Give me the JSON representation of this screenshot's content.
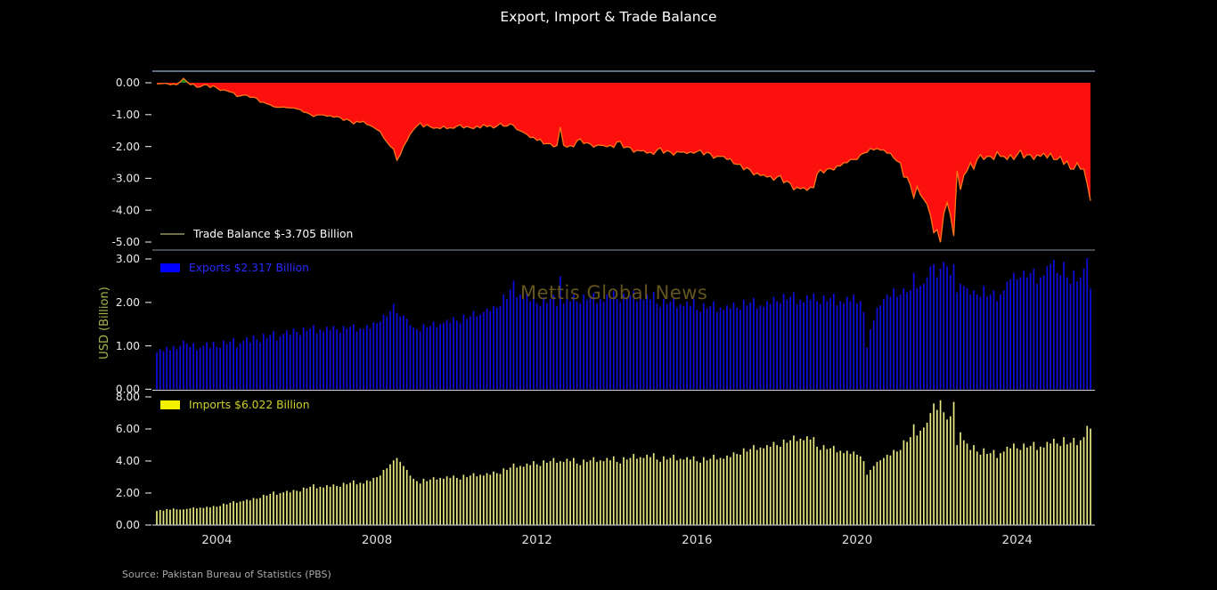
{
  "title": "Export, Import & Trade Balance",
  "y_axis_label": "USD (Billion)",
  "watermark": "Mettis Global News",
  "source": "Source: Pakistan Bureau of Statistics (PBS)",
  "colors": {
    "background": "#000000",
    "title_text": "#ffffff",
    "axis_tick_text": "#ededed",
    "tick_mark": "#cfcfcf",
    "x_label_text": "#dedede",
    "ylabel_text": "#a9b44d",
    "spine_top": "#96b3d9",
    "spine_mid1": "#8d96a5",
    "spine_mid2": "#cfcfcf",
    "spine_bottom": "#b6bcc6",
    "trade_fill_negative": "#fb100d",
    "trade_fill_positive": "#1f8b1f",
    "trade_line": "#ff7518",
    "trade_legend_swatch": "#6e6e4b",
    "trade_legend_text": "#ffffff",
    "exports_bar": "#0d0de0",
    "exports_legend_swatch": "#0000ff",
    "exports_legend_text": "#2a2aff",
    "imports_bar": "#e9e882",
    "imports_legend_swatch": "#f2f200",
    "imports_legend_text": "#cfcf2e",
    "watermark_text": "#6a591f",
    "source_text": "#a9a9a9"
  },
  "x_axis": {
    "frequency": "monthly",
    "start": "2002-07",
    "end": "2025-11",
    "tick_labels": [
      "2004",
      "2008",
      "2012",
      "2016",
      "2020",
      "2024"
    ],
    "tick_month_index": [
      18,
      66,
      114,
      162,
      210,
      258
    ]
  },
  "chart_data": [
    {
      "type": "area",
      "name": "Trade Balance",
      "legend": "Trade Balance $-3.705 Billion",
      "latest_value_billion_usd": -3.705,
      "ylim": [
        -5.25,
        0.36
      ],
      "ytick_values": [
        0,
        -1,
        -2,
        -3,
        -4,
        -5
      ],
      "ytick_labels": [
        "0.00",
        "-1.00",
        "-2.00",
        "-3.00",
        "-4.00",
        "-5.00"
      ],
      "values_derived": "exports_minus_imports"
    },
    {
      "type": "bar",
      "name": "Exports",
      "legend": "Exports $2.317 Billion",
      "latest_value_billion_usd": 2.317,
      "ylim": [
        0,
        3.2
      ],
      "ytick_values": [
        3,
        2,
        1,
        0
      ],
      "ytick_labels": [
        "3.00",
        "2.00",
        "1.00",
        "0.00"
      ],
      "values_by_year": {
        "2002": [
          0.85,
          0.92,
          0.88,
          0.98,
          0.9,
          1.0
        ],
        "2003": [
          0.92,
          1.0,
          1.12,
          1.05,
          0.98,
          1.06,
          0.9,
          0.96,
          1.0,
          1.08,
          0.95,
          1.1
        ],
        "2004": [
          0.98,
          0.95,
          1.12,
          1.04,
          1.1,
          1.18,
          0.96,
          1.06,
          1.12,
          1.2,
          1.08,
          1.24
        ],
        "2005": [
          1.15,
          1.08,
          1.28,
          1.18,
          1.25,
          1.34,
          1.12,
          1.22,
          1.28,
          1.36,
          1.25,
          1.4
        ],
        "2006": [
          1.32,
          1.25,
          1.42,
          1.35,
          1.4,
          1.48,
          1.28,
          1.38,
          1.33,
          1.44,
          1.36,
          1.46
        ],
        "2007": [
          1.38,
          1.3,
          1.46,
          1.4,
          1.44,
          1.5,
          1.33,
          1.4,
          1.38,
          1.48,
          1.4,
          1.54
        ],
        "2008": [
          1.52,
          1.56,
          1.72,
          1.68,
          1.8,
          1.96,
          1.76,
          1.68,
          1.7,
          1.62,
          1.48,
          1.42
        ],
        "2009": [
          1.38,
          1.33,
          1.5,
          1.43,
          1.46,
          1.56,
          1.43,
          1.5,
          1.53,
          1.6,
          1.53,
          1.66
        ],
        "2010": [
          1.58,
          1.52,
          1.72,
          1.62,
          1.68,
          1.8,
          1.68,
          1.72,
          1.78,
          1.86,
          1.8,
          1.92
        ],
        "2011": [
          1.88,
          1.92,
          2.18,
          2.08,
          2.3,
          2.5,
          2.12,
          2.18,
          2.08,
          2.22,
          2.02,
          2.28
        ],
        "2012": [
          1.98,
          1.92,
          2.12,
          1.98,
          2.08,
          2.18,
          1.92,
          2.6,
          1.98,
          2.12,
          2.02,
          2.18
        ],
        "2013": [
          2.02,
          1.98,
          2.18,
          2.06,
          2.12,
          2.22,
          1.98,
          2.08,
          2.02,
          2.18,
          2.08,
          2.26
        ],
        "2014": [
          2.08,
          2.0,
          2.2,
          2.08,
          2.16,
          2.26,
          2.02,
          2.1,
          2.06,
          2.18,
          2.06,
          2.24
        ],
        "2015": [
          1.98,
          1.9,
          2.08,
          1.96,
          2.02,
          2.12,
          1.88,
          1.96,
          1.92,
          2.02,
          1.92,
          2.08
        ],
        "2016": [
          1.83,
          1.78,
          1.98,
          1.86,
          1.92,
          2.02,
          1.78,
          1.88,
          1.83,
          1.93,
          1.86,
          2.0
        ],
        "2017": [
          1.88,
          1.83,
          2.06,
          1.93,
          2.0,
          2.1,
          1.86,
          1.93,
          1.9,
          2.03,
          1.96,
          2.13
        ],
        "2018": [
          2.03,
          1.98,
          2.2,
          2.06,
          2.13,
          2.23,
          1.96,
          2.06,
          2.0,
          2.16,
          2.06,
          2.2
        ],
        "2019": [
          2.03,
          1.96,
          2.16,
          2.03,
          2.1,
          2.2,
          1.93,
          2.03,
          1.98,
          2.13,
          2.03,
          2.18
        ],
        "2020": [
          1.98,
          2.03,
          1.78,
          0.96,
          1.38,
          1.58,
          1.88,
          1.93,
          2.08,
          2.18,
          2.13,
          2.33
        ],
        "2021": [
          2.13,
          2.18,
          2.33,
          2.23,
          2.28,
          2.68,
          2.33,
          2.38,
          2.43,
          2.58,
          2.83,
          2.88
        ],
        "2022": [
          2.58,
          2.78,
          2.93,
          2.83,
          2.63,
          2.88,
          2.23,
          2.43,
          2.38,
          2.33,
          2.18,
          2.28
        ],
        "2023": [
          2.18,
          2.13,
          2.38,
          2.13,
          2.18,
          2.28,
          2.03,
          2.18,
          2.28,
          2.48,
          2.53,
          2.68
        ],
        "2024": [
          2.53,
          2.58,
          2.73,
          2.58,
          2.68,
          2.78,
          2.43,
          2.58,
          2.63,
          2.83,
          2.88,
          2.98
        ],
        "2025": [
          2.68,
          2.63,
          2.93,
          2.58,
          2.43,
          2.73,
          2.48,
          2.58,
          2.78,
          3.02,
          2.317
        ]
      }
    },
    {
      "type": "bar",
      "name": "Imports",
      "legend": "Imports $6.022 Billion",
      "latest_value_billion_usd": 6.022,
      "ylim": [
        0,
        8.4
      ],
      "ytick_values": [
        8,
        6,
        4,
        2,
        0
      ],
      "ytick_labels": [
        "8.00",
        "6.00",
        "4.00",
        "2.00",
        "0.00"
      ],
      "values_by_year": {
        "2002": [
          0.88,
          0.95,
          0.9,
          1.0,
          0.96,
          1.04
        ],
        "2003": [
          0.98,
          0.97,
          0.98,
          1.01,
          1.04,
          1.1,
          1.04,
          1.09,
          1.07,
          1.14,
          1.1,
          1.19
        ],
        "2004": [
          1.14,
          1.19,
          1.34,
          1.29,
          1.39,
          1.49,
          1.39,
          1.47,
          1.51,
          1.59,
          1.54,
          1.69
        ],
        "2005": [
          1.64,
          1.69,
          1.89,
          1.84,
          1.94,
          2.09,
          1.89,
          1.99,
          2.04,
          2.14,
          2.04,
          2.19
        ],
        "2006": [
          2.14,
          2.09,
          2.34,
          2.29,
          2.39,
          2.54,
          2.29,
          2.39,
          2.34,
          2.49,
          2.39,
          2.54
        ],
        "2007": [
          2.44,
          2.39,
          2.64,
          2.54,
          2.64,
          2.79,
          2.54,
          2.64,
          2.59,
          2.79,
          2.74,
          2.94
        ],
        "2008": [
          2.99,
          3.09,
          3.44,
          3.54,
          3.79,
          4.04,
          4.19,
          3.94,
          3.69,
          3.44,
          3.09,
          2.89
        ],
        "2009": [
          2.74,
          2.59,
          2.89,
          2.74,
          2.84,
          2.99,
          2.84,
          2.94,
          2.89,
          3.04,
          2.94,
          3.09
        ],
        "2010": [
          2.94,
          2.84,
          3.14,
          2.99,
          3.09,
          3.24,
          3.04,
          3.14,
          3.09,
          3.24,
          3.14,
          3.34
        ],
        "2011": [
          3.24,
          3.19,
          3.54,
          3.44,
          3.59,
          3.84,
          3.59,
          3.69,
          3.64,
          3.84,
          3.74,
          3.99
        ],
        "2012": [
          3.79,
          3.69,
          4.04,
          3.89,
          3.99,
          4.19,
          3.89,
          3.99,
          3.94,
          4.14,
          3.99,
          4.19
        ],
        "2013": [
          3.84,
          3.74,
          4.09,
          3.94,
          4.04,
          4.24,
          3.94,
          4.04,
          3.99,
          4.19,
          4.04,
          4.29
        ],
        "2014": [
          3.94,
          3.84,
          4.24,
          4.09,
          4.19,
          4.44,
          4.14,
          4.24,
          4.19,
          4.39,
          4.24,
          4.49
        ],
        "2015": [
          4.09,
          3.94,
          4.29,
          4.09,
          4.19,
          4.39,
          4.04,
          4.14,
          4.09,
          4.24,
          4.09,
          4.29
        ],
        "2016": [
          3.99,
          3.89,
          4.24,
          4.04,
          4.14,
          4.39,
          4.09,
          4.19,
          4.14,
          4.34,
          4.24,
          4.54
        ],
        "2017": [
          4.44,
          4.39,
          4.79,
          4.59,
          4.74,
          4.99,
          4.69,
          4.84,
          4.79,
          4.99,
          4.89,
          5.19
        ],
        "2018": [
          4.99,
          4.89,
          5.34,
          5.14,
          5.29,
          5.59,
          5.24,
          5.39,
          5.29,
          5.54,
          5.34,
          5.49
        ],
        "2019": [
          4.89,
          4.69,
          4.99,
          4.74,
          4.79,
          4.94,
          4.54,
          4.64,
          4.49,
          4.64,
          4.44,
          4.59
        ],
        "2020": [
          4.39,
          4.29,
          3.99,
          3.14,
          3.44,
          3.69,
          3.94,
          4.04,
          4.19,
          4.39,
          4.34,
          4.69
        ],
        "2021": [
          4.59,
          4.69,
          5.29,
          5.19,
          5.49,
          6.29,
          5.59,
          5.89,
          6.09,
          6.39,
          6.99,
          7.59
        ],
        "2022": [
          7.19,
          7.79,
          7.04,
          6.59,
          6.79,
          7.69,
          4.99,
          5.79,
          5.29,
          5.09,
          4.69,
          4.99
        ],
        "2023": [
          4.59,
          4.39,
          4.79,
          4.44,
          4.49,
          4.69,
          4.19,
          4.49,
          4.59,
          4.89,
          4.79,
          5.09
        ],
        "2024": [
          4.79,
          4.69,
          5.09,
          4.84,
          4.94,
          5.19,
          4.69,
          4.89,
          4.84,
          5.19,
          5.09,
          5.39
        ],
        "2025": [
          5.09,
          4.94,
          5.49,
          5.04,
          5.14,
          5.44,
          4.99,
          5.29,
          5.49,
          6.19,
          6.022
        ]
      }
    }
  ]
}
